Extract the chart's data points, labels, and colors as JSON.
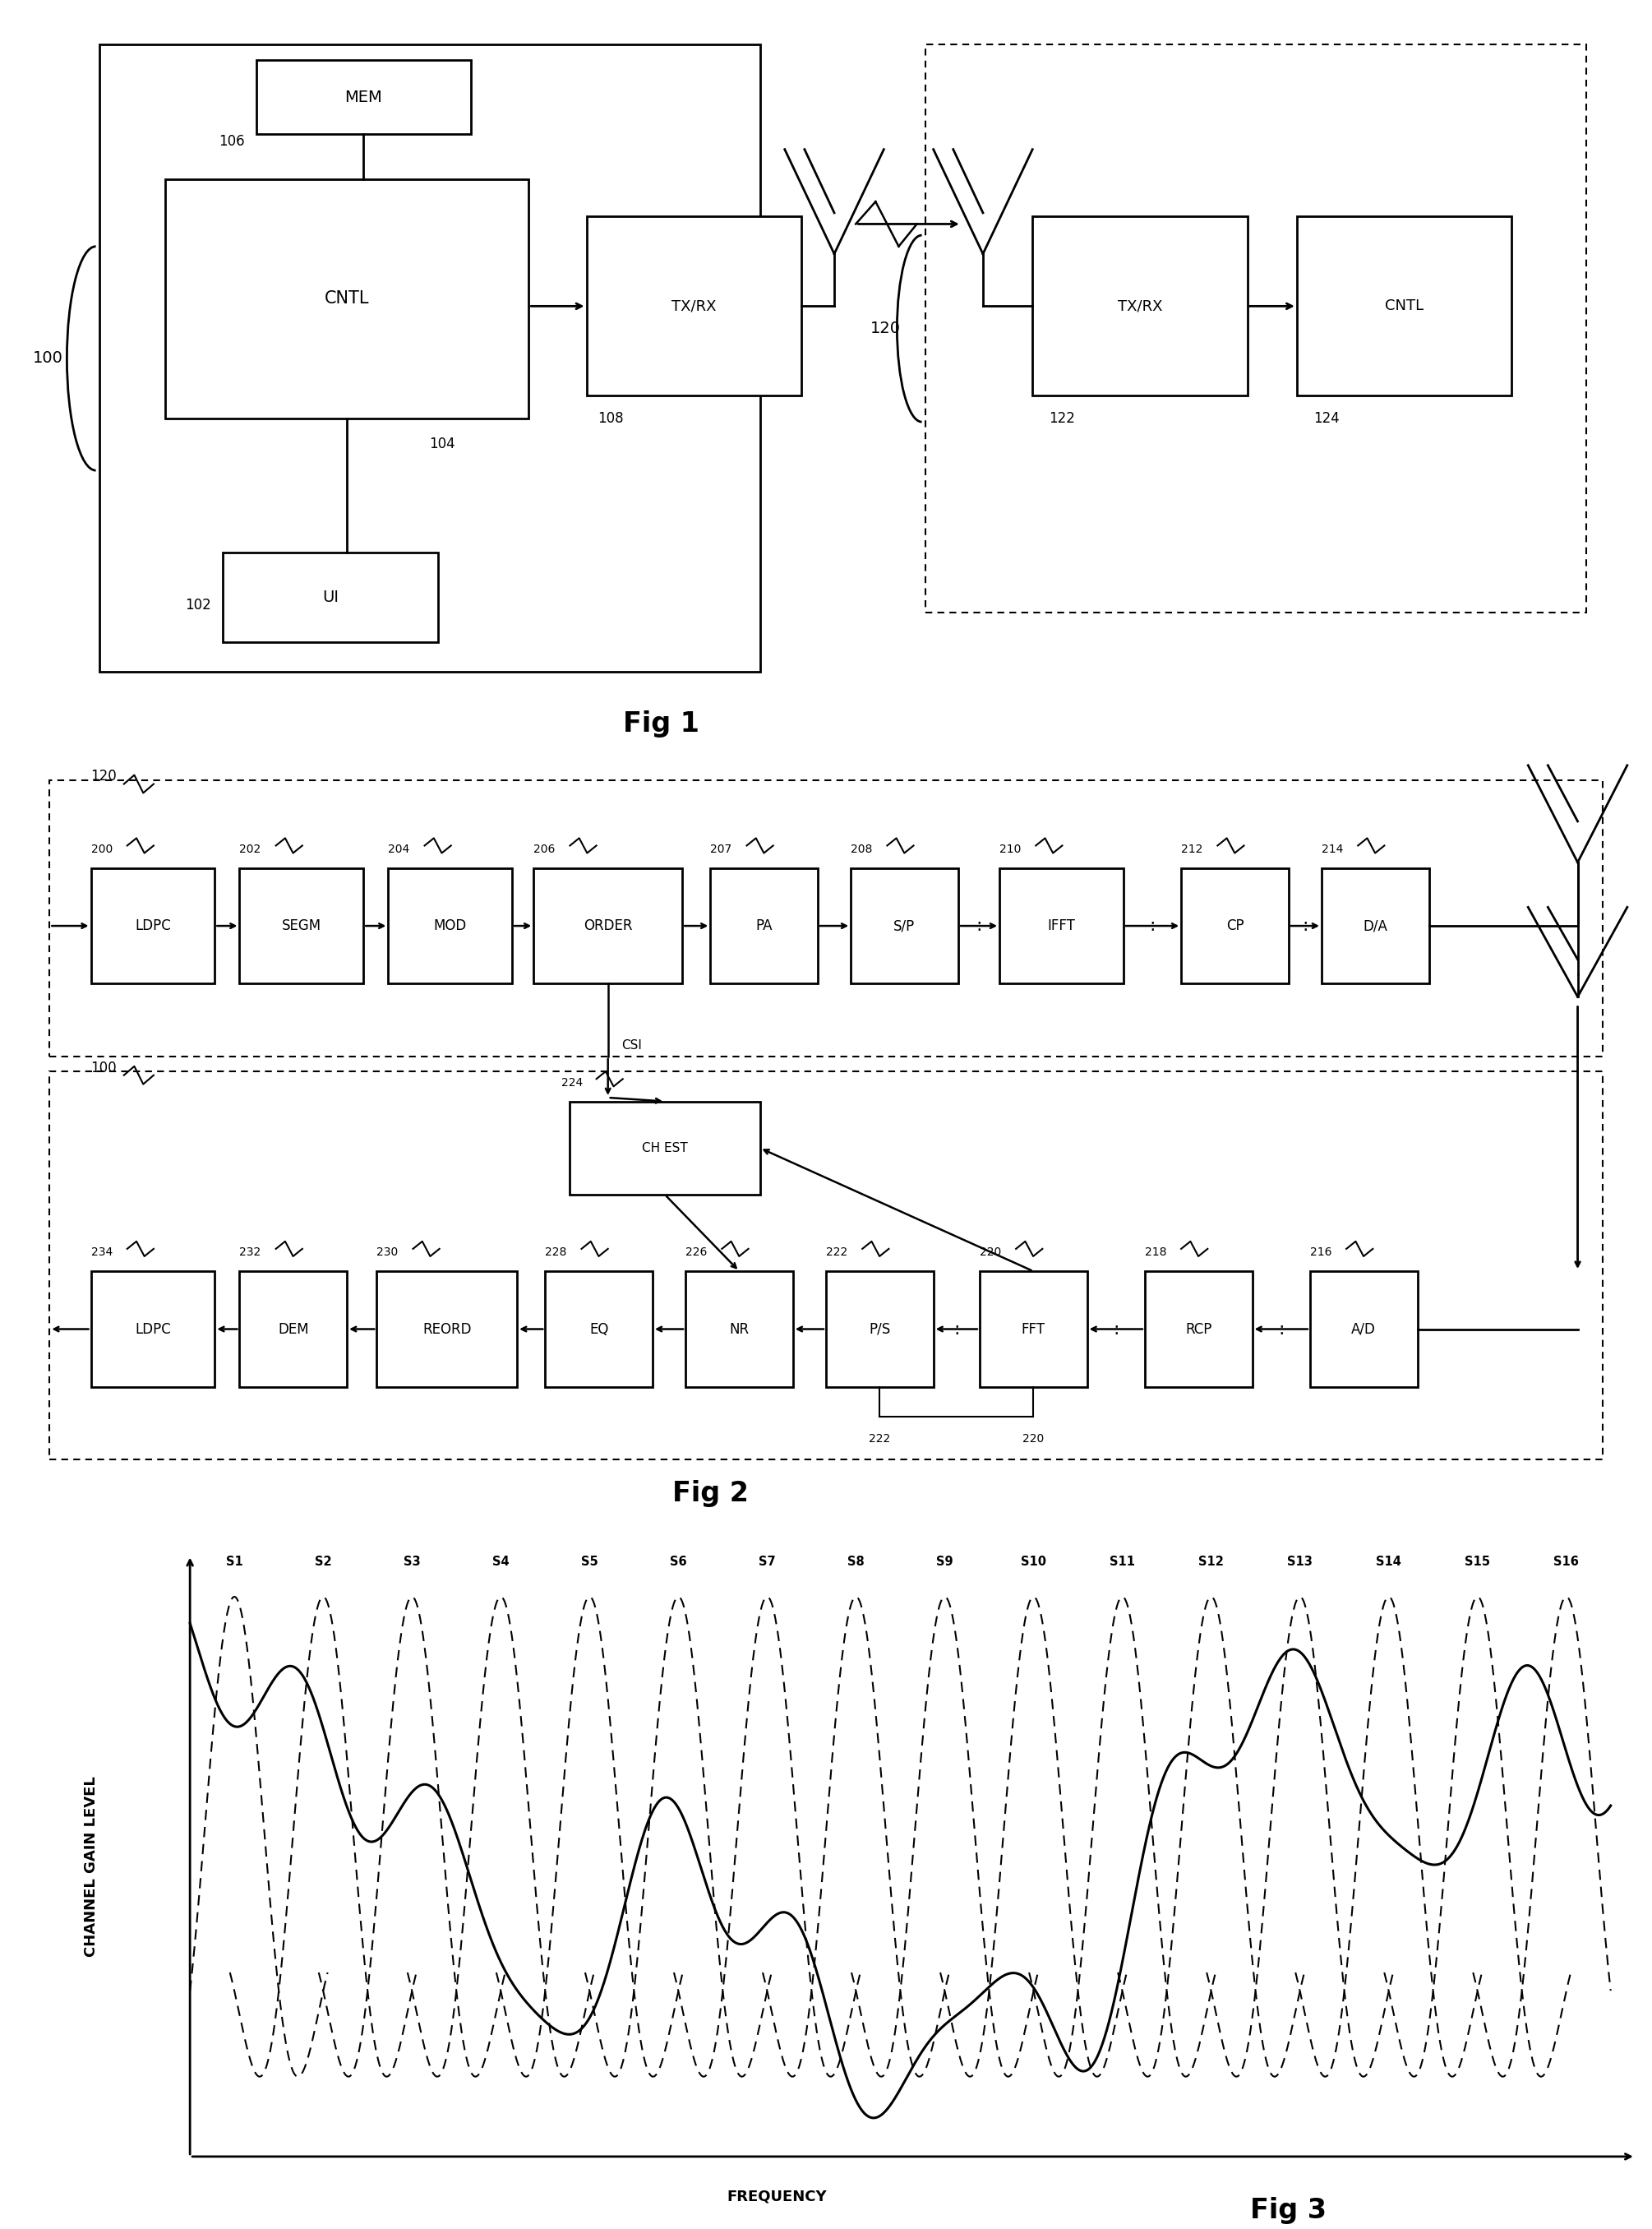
{
  "background_color": "#ffffff",
  "fig3": {
    "subcarriers": [
      "S1",
      "S2",
      "S3",
      "S4",
      "S5",
      "S6",
      "S7",
      "S8",
      "S9",
      "S10",
      "S11",
      "S12",
      "S13",
      "S14",
      "S15",
      "S16"
    ],
    "n_subcarriers": 16,
    "xlabel": "FREQUENCY",
    "ylabel": "CHANNEL GAIN LEVEL"
  }
}
